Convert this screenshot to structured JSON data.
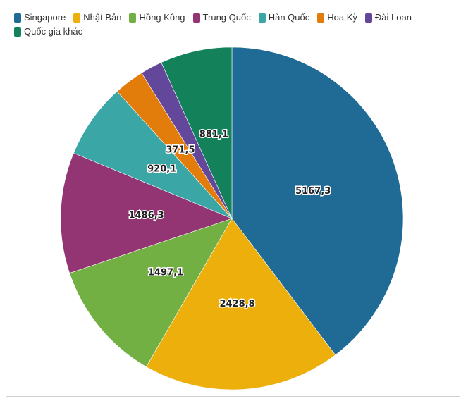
{
  "chart_data": {
    "type": "pie",
    "categories": [
      "Singapore",
      "Nhật Bản",
      "Hồng Kông",
      "Trung Quốc",
      "Hàn Quốc",
      "Hoa Kỳ",
      "Đài Loan",
      "Quốc gia khác"
    ],
    "values": [
      5167.3,
      2428.8,
      1497.1,
      1486.3,
      920.1,
      371.5,
      270.0,
      881.1
    ],
    "data_labels": [
      "5167,3",
      "2428,8",
      "1497,1",
      "1486,3",
      "920,1",
      "371,5",
      "",
      "881,1"
    ],
    "colors": [
      "#1f6b96",
      "#ecaf0b",
      "#72b044",
      "#933572",
      "#3aa7a6",
      "#e27d0c",
      "#63479a",
      "#13825b"
    ],
    "legend_position": "top-left"
  }
}
